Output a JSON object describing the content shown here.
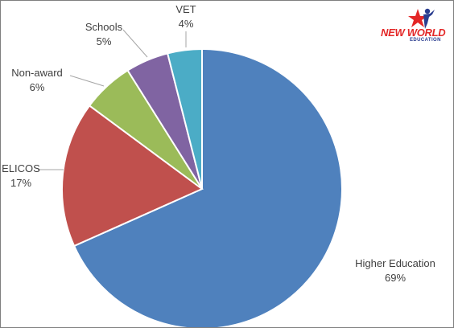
{
  "chart_data": {
    "type": "pie",
    "categories": [
      "Higher Education",
      "ELICOS",
      "Non-award",
      "Schools",
      "VET"
    ],
    "values": [
      69,
      17,
      6,
      5,
      4
    ],
    "value_labels": [
      "69%",
      "17%",
      "6%",
      "5%",
      "4%"
    ],
    "colors": [
      "#4f81bd",
      "#c0504d",
      "#9bbb59",
      "#8064a2",
      "#4bacc6"
    ],
    "start_angle_deg": 0,
    "direction": "clockwise",
    "legend": "none"
  },
  "logo": {
    "name": "NEW WORLD",
    "sub": "EDUCATION",
    "icon": "star-person-logo"
  }
}
